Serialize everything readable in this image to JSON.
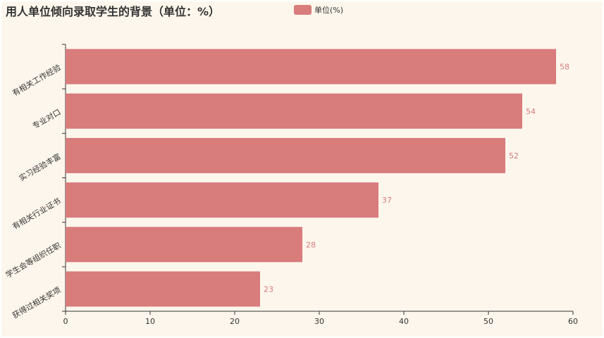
{
  "colors": {
    "background": "#fdf6ec",
    "bar": "#d87c7c",
    "axis": "#333333",
    "text": "#333333"
  },
  "chart_data": {
    "type": "bar",
    "orientation": "horizontal",
    "title": "用人单位倾向录取学生的背景（单位：%）",
    "legend": [
      "单位(%)"
    ],
    "legend_position": "top",
    "grid": false,
    "categories": [
      "有相关工作经验",
      "专业对口",
      "实习经验丰富",
      "有相关行业证书",
      "学生会等组织任职",
      "获得过相关奖项"
    ],
    "series": [
      {
        "name": "单位(%)",
        "values": [
          58,
          54,
          52,
          37,
          28,
          23
        ]
      }
    ],
    "xlim": [
      0,
      60
    ],
    "xticks": [
      "0",
      "10",
      "20",
      "30",
      "40",
      "50",
      "60"
    ]
  }
}
